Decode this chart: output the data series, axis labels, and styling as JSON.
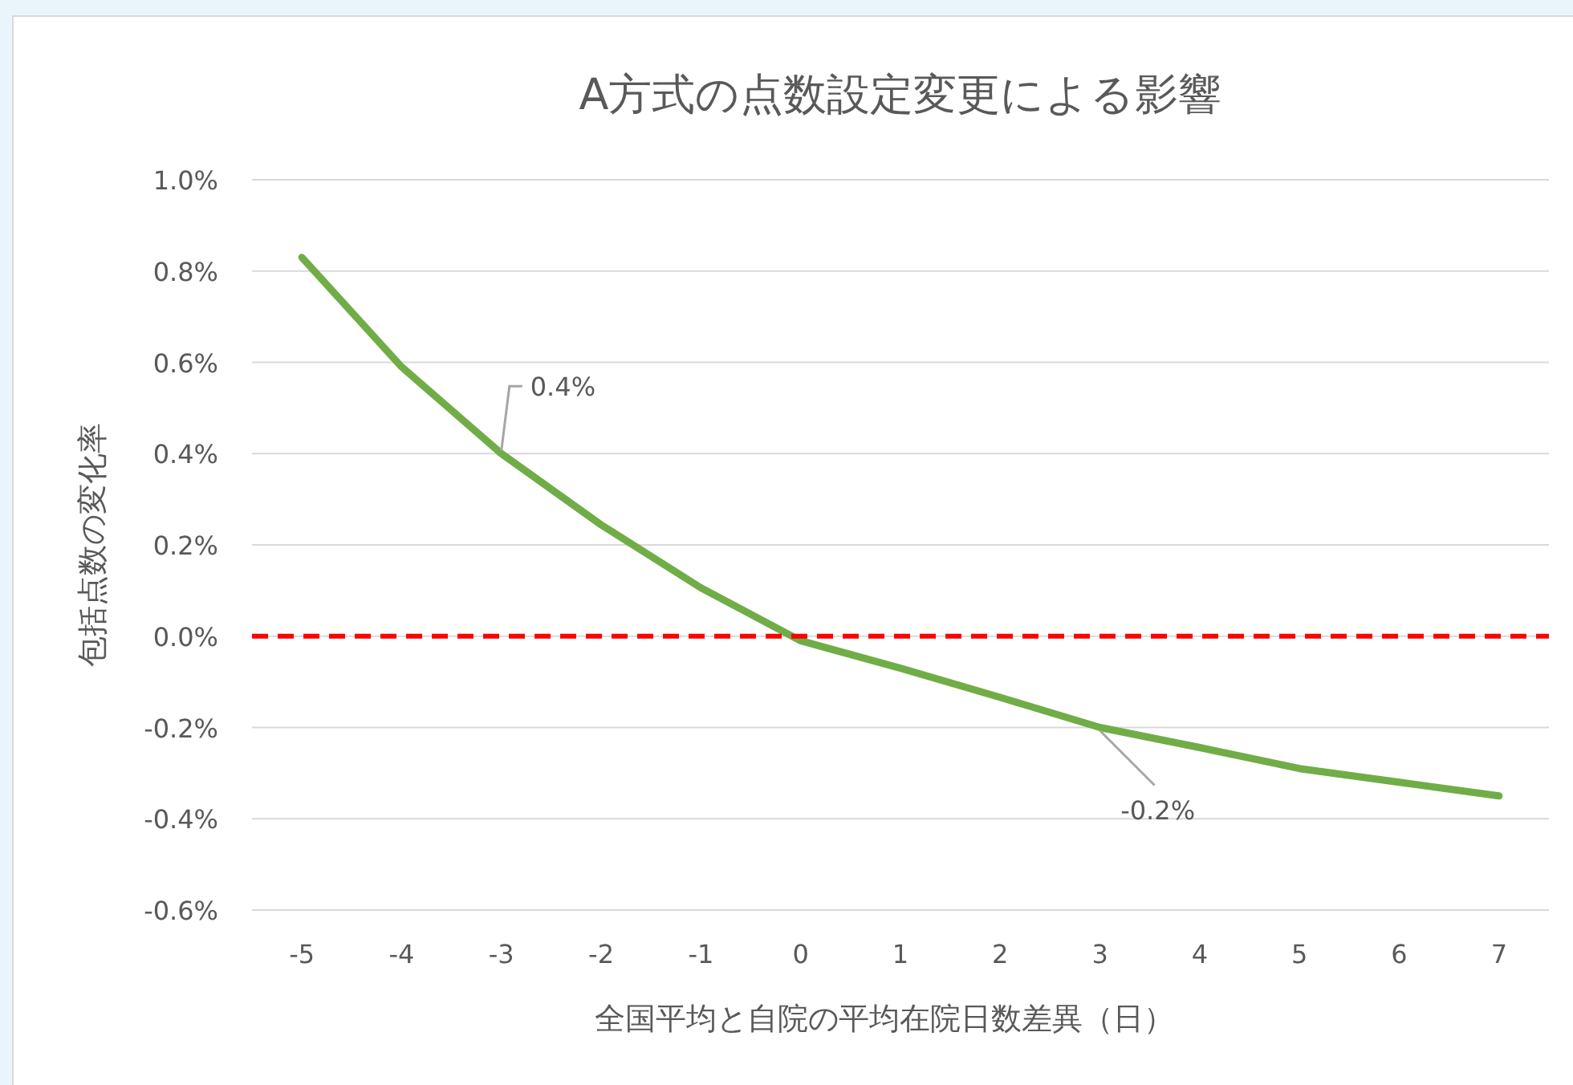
{
  "chart_data": {
    "type": "line",
    "title": "A方式の点数設定変更による影響",
    "xlabel": "全国平均と自院の平均在院日数差異（日）",
    "ylabel": "包括点数の変化率",
    "categories": [
      "-5",
      "-4",
      "-3",
      "-2",
      "-1",
      "0",
      "1",
      "2",
      "3",
      "4",
      "5",
      "6",
      "7"
    ],
    "series": [
      {
        "color": "#70ad47",
        "values": [
          0.83,
          0.59,
          0.4,
          0.244,
          0.106,
          -0.01,
          -0.07,
          -0.134,
          -0.2,
          -0.244,
          -0.29,
          -0.32,
          -0.35
        ]
      }
    ],
    "ylim": [
      -0.6,
      1.0
    ],
    "yticks": [
      {
        "value": -0.6,
        "label": "-0.6%"
      },
      {
        "value": -0.4,
        "label": "-0.4%"
      },
      {
        "value": -0.2,
        "label": "-0.2%"
      },
      {
        "value": 0,
        "label": "0.0%"
      },
      {
        "value": 0.2,
        "label": "0.2%"
      },
      {
        "value": 0.4,
        "label": "0.4%"
      },
      {
        "value": 0.6,
        "label": "0.6%"
      },
      {
        "value": 0.8,
        "label": "0.8%"
      },
      {
        "value": 1.0,
        "label": "1.0%"
      }
    ],
    "ref_lines": [
      {
        "axis": "y",
        "value": 0,
        "color": "#ff0000",
        "line_style": "dashed"
      }
    ],
    "annotations": [
      {
        "text": "0.4%",
        "x": "-3",
        "y": 0.4
      },
      {
        "text": "-0.2%",
        "x": "3",
        "y": -0.2
      }
    ],
    "grid": "y",
    "marker": "none",
    "line_style": "solid"
  }
}
